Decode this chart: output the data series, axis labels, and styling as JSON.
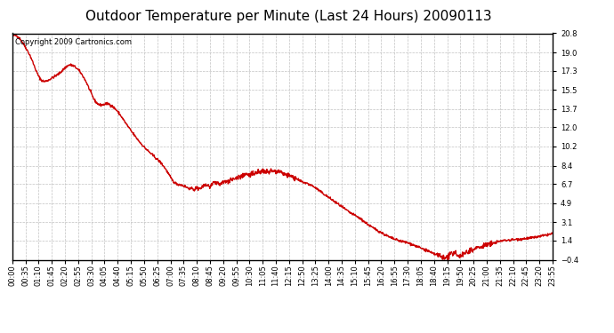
{
  "title": "Outdoor Temperature per Minute (Last 24 Hours) 20090113",
  "copyright_text": "Copyright 2009 Cartronics.com",
  "line_color": "#cc0000",
  "background_color": "#ffffff",
  "grid_color": "#bbbbbb",
  "yticks": [
    20.8,
    19.0,
    17.3,
    15.5,
    13.7,
    12.0,
    10.2,
    8.4,
    6.7,
    4.9,
    3.1,
    1.4,
    -0.4
  ],
  "ylim": [
    -0.4,
    20.8
  ],
  "xtick_labels": [
    "00:00",
    "00:35",
    "01:10",
    "01:45",
    "02:20",
    "02:55",
    "03:30",
    "04:05",
    "04:40",
    "05:15",
    "05:50",
    "06:25",
    "07:00",
    "07:35",
    "08:10",
    "08:45",
    "09:20",
    "09:55",
    "10:30",
    "11:05",
    "11:40",
    "12:15",
    "12:50",
    "13:25",
    "14:00",
    "14:35",
    "15:10",
    "15:45",
    "16:20",
    "16:55",
    "17:30",
    "18:05",
    "18:40",
    "19:15",
    "19:50",
    "20:25",
    "21:00",
    "21:35",
    "22:10",
    "22:45",
    "23:20",
    "23:55"
  ],
  "title_fontsize": 11,
  "copyright_fontsize": 6,
  "tick_fontsize": 6,
  "line_width": 1.0,
  "control_points": [
    [
      0,
      20.5
    ],
    [
      10,
      20.6
    ],
    [
      20,
      20.3
    ],
    [
      35,
      19.5
    ],
    [
      50,
      18.5
    ],
    [
      70,
      16.8
    ],
    [
      85,
      16.3
    ],
    [
      100,
      16.5
    ],
    [
      115,
      16.8
    ],
    [
      130,
      17.2
    ],
    [
      150,
      17.8
    ],
    [
      165,
      17.7
    ],
    [
      180,
      17.2
    ],
    [
      200,
      16.0
    ],
    [
      220,
      14.5
    ],
    [
      240,
      14.1
    ],
    [
      255,
      14.2
    ],
    [
      265,
      14.0
    ],
    [
      280,
      13.5
    ],
    [
      300,
      12.5
    ],
    [
      320,
      11.5
    ],
    [
      350,
      10.2
    ],
    [
      380,
      9.2
    ],
    [
      410,
      8.0
    ],
    [
      430,
      6.9
    ],
    [
      450,
      6.6
    ],
    [
      470,
      6.3
    ],
    [
      490,
      6.2
    ],
    [
      505,
      6.4
    ],
    [
      515,
      6.6
    ],
    [
      525,
      6.5
    ],
    [
      535,
      6.7
    ],
    [
      545,
      6.8
    ],
    [
      555,
      6.7
    ],
    [
      565,
      6.9
    ],
    [
      575,
      7.0
    ],
    [
      585,
      7.1
    ],
    [
      600,
      7.3
    ],
    [
      615,
      7.5
    ],
    [
      630,
      7.6
    ],
    [
      645,
      7.7
    ],
    [
      660,
      7.8
    ],
    [
      670,
      7.9
    ],
    [
      680,
      7.8
    ],
    [
      690,
      7.85
    ],
    [
      700,
      7.9
    ],
    [
      710,
      7.85
    ],
    [
      720,
      7.7
    ],
    [
      735,
      7.5
    ],
    [
      750,
      7.3
    ],
    [
      765,
      7.0
    ],
    [
      780,
      6.8
    ],
    [
      800,
      6.5
    ],
    [
      820,
      6.0
    ],
    [
      840,
      5.5
    ],
    [
      860,
      5.0
    ],
    [
      880,
      4.5
    ],
    [
      900,
      4.0
    ],
    [
      920,
      3.6
    ],
    [
      940,
      3.1
    ],
    [
      960,
      2.6
    ],
    [
      980,
      2.2
    ],
    [
      1000,
      1.8
    ],
    [
      1020,
      1.5
    ],
    [
      1040,
      1.3
    ],
    [
      1060,
      1.1
    ],
    [
      1080,
      0.8
    ],
    [
      1095,
      0.6
    ],
    [
      1108,
      0.4
    ],
    [
      1118,
      0.2
    ],
    [
      1128,
      0.1
    ],
    [
      1140,
      -0.1
    ],
    [
      1150,
      -0.2
    ],
    [
      1155,
      -0.25
    ],
    [
      1160,
      -0.1
    ],
    [
      1165,
      0.0
    ],
    [
      1170,
      0.1
    ],
    [
      1178,
      0.2
    ],
    [
      1185,
      0.1
    ],
    [
      1192,
      0.0
    ],
    [
      1200,
      0.1
    ],
    [
      1208,
      0.3
    ],
    [
      1215,
      0.4
    ],
    [
      1222,
      0.5
    ],
    [
      1230,
      0.6
    ],
    [
      1238,
      0.7
    ],
    [
      1245,
      0.8
    ],
    [
      1255,
      0.9
    ],
    [
      1265,
      1.0
    ],
    [
      1275,
      1.1
    ],
    [
      1285,
      1.2
    ],
    [
      1295,
      1.3
    ],
    [
      1310,
      1.4
    ],
    [
      1325,
      1.45
    ],
    [
      1340,
      1.5
    ],
    [
      1355,
      1.55
    ],
    [
      1370,
      1.6
    ],
    [
      1385,
      1.65
    ],
    [
      1400,
      1.75
    ],
    [
      1415,
      1.85
    ],
    [
      1428,
      1.95
    ],
    [
      1439,
      2.05
    ]
  ]
}
